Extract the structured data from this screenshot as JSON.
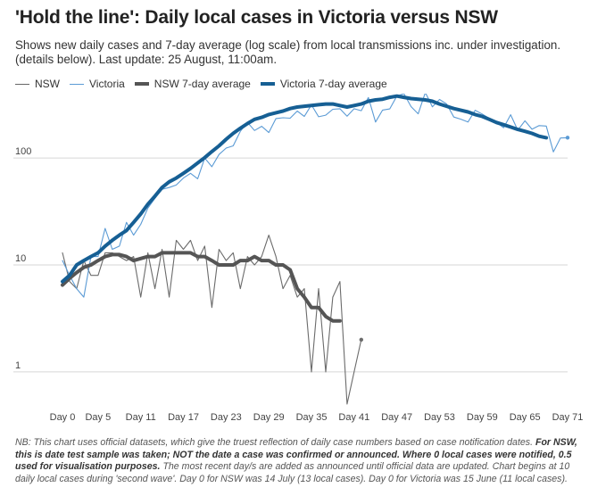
{
  "header": {
    "title": "'Hold the line': Daily local cases in Victoria versus NSW",
    "subtitle": "Shows new daily cases and 7-day average (log scale) from local transmissions inc. under investigation. (details below). Last update: 25 August, 11:00am."
  },
  "legend": [
    {
      "label": "NSW",
      "color": "#666666",
      "weight": "thin"
    },
    {
      "label": "Victoria",
      "color": "#5b9bd5",
      "weight": "thin"
    },
    {
      "label": "NSW 7-day average",
      "color": "#555555",
      "weight": "thick"
    },
    {
      "label": "Victoria 7-day average",
      "color": "#165f94",
      "weight": "thick"
    }
  ],
  "note": {
    "p1": "NB: This chart uses official datasets, which give the truest reflection of daily case numbers based on case notification dates.",
    "p2_bold": "For NSW, this is date test sample was taken; NOT the date a case was confirmed or announced. Where 0 local cases were notified, 0.5 used for visualisation purposes.",
    "p3": "The most recent day/s are added as announced until official data are updated. Chart begins at 10 daily local cases during 'second wave'. Day 0 for NSW was 14 July (13 local cases). Day 0 for Victoria was 15 June (11 local cases)."
  },
  "chart_data": {
    "type": "line",
    "yscale": "log",
    "ylim": [
      0.5,
      400
    ],
    "xlim": [
      0,
      71
    ],
    "y_ticks": [
      1,
      10,
      100
    ],
    "x_ticks": [
      "Day 0",
      "Day 5",
      "Day 11",
      "Day 17",
      "Day 23",
      "Day 29",
      "Day 35",
      "Day 41",
      "Day 47",
      "Day 53",
      "Day 59",
      "Day 65",
      "Day 71"
    ],
    "grid": "horizontal",
    "legend_position": "top-left",
    "series": [
      {
        "name": "NSW",
        "color": "#6b6b6b",
        "width": 1.1,
        "x": [
          0,
          1,
          2,
          3,
          4,
          5,
          6,
          7,
          8,
          9,
          10,
          11,
          12,
          13,
          14,
          15,
          16,
          17,
          18,
          19,
          20,
          21,
          22,
          23,
          24,
          25,
          26,
          27,
          28,
          29,
          30,
          31,
          32,
          33,
          34,
          35,
          36,
          37,
          38,
          39,
          40,
          41,
          42
        ],
        "values": [
          13,
          7,
          6,
          11,
          8,
          8,
          13,
          13,
          12,
          11,
          12,
          5,
          13,
          6,
          14,
          5,
          17,
          14,
          17,
          11,
          15,
          4,
          14,
          11,
          13,
          6,
          12,
          10,
          12,
          19,
          12,
          6,
          8,
          5,
          6,
          1,
          6,
          1,
          5,
          7,
          0.5,
          1,
          2
        ]
      },
      {
        "name": "Victoria",
        "color": "#5b9bd5",
        "width": 1.1,
        "x": [
          0,
          1,
          2,
          3,
          4,
          5,
          6,
          7,
          8,
          9,
          10,
          11,
          12,
          13,
          14,
          15,
          16,
          17,
          18,
          19,
          20,
          21,
          22,
          23,
          24,
          25,
          26,
          27,
          28,
          29,
          30,
          31,
          32,
          33,
          34,
          35,
          36,
          37,
          38,
          39,
          40,
          41,
          42,
          43,
          44,
          45,
          46,
          47,
          48,
          49,
          50,
          51,
          52,
          53,
          54,
          55,
          56,
          57,
          58,
          59,
          60,
          61,
          62,
          63,
          64,
          65,
          66,
          67,
          68,
          69,
          70,
          71
        ],
        "values": [
          11,
          8,
          6,
          5,
          12,
          12,
          22,
          14,
          15,
          25,
          19,
          24,
          34,
          42,
          51,
          53,
          56,
          65,
          72,
          64,
          100,
          83,
          108,
          124,
          130,
          178,
          216,
          181,
          198,
          173,
          234,
          238,
          236,
          275,
          245,
          314,
          243,
          252,
          286,
          289,
          246,
          289,
          277,
          368,
          217,
          281,
          288,
          380,
          400,
          303,
          259,
          410,
          301,
          353,
          320,
          242,
          231,
          217,
          280,
          258,
          235,
          216,
          192,
          254,
          182,
          223,
          186,
          201,
          199,
          114,
          154,
          155
        ]
      },
      {
        "name": "NSW 7-day average",
        "color": "#555555",
        "width": 4,
        "x": [
          0,
          1,
          2,
          3,
          4,
          5,
          6,
          7,
          8,
          9,
          10,
          11,
          12,
          13,
          14,
          15,
          16,
          17,
          18,
          19,
          20,
          21,
          22,
          23,
          24,
          25,
          26,
          27,
          28,
          29,
          30,
          31,
          32,
          33,
          34,
          35,
          36,
          37,
          38,
          39
        ],
        "values": [
          6.5,
          7.5,
          8.5,
          9.5,
          10,
          11,
          12,
          12.5,
          12.5,
          12,
          11,
          11.5,
          12,
          12,
          13,
          13,
          13,
          13,
          13,
          12,
          12,
          11,
          10,
          10,
          10,
          11,
          11,
          12,
          11,
          11,
          10,
          10,
          9,
          6,
          5,
          4,
          4,
          3.3,
          3,
          3
        ]
      },
      {
        "name": "Victoria 7-day average",
        "color": "#165f94",
        "width": 4,
        "x": [
          0,
          1,
          2,
          3,
          4,
          5,
          6,
          7,
          8,
          9,
          10,
          11,
          12,
          13,
          14,
          15,
          16,
          17,
          18,
          19,
          20,
          21,
          22,
          23,
          24,
          25,
          26,
          27,
          28,
          29,
          30,
          31,
          32,
          33,
          34,
          35,
          36,
          37,
          38,
          39,
          40,
          41,
          42,
          43,
          44,
          45,
          46,
          47,
          48,
          49,
          50,
          51,
          52,
          53,
          54,
          55,
          56,
          57,
          58,
          59,
          60,
          61,
          62,
          63,
          64,
          65,
          66,
          67,
          68
        ],
        "values": [
          7,
          8,
          10,
          11,
          12,
          13,
          15,
          17,
          19,
          21,
          25,
          30,
          37,
          44,
          53,
          60,
          65,
          72,
          80,
          90,
          101,
          115,
          130,
          150,
          170,
          190,
          210,
          230,
          240,
          255,
          265,
          275,
          290,
          300,
          305,
          310,
          315,
          320,
          320,
          310,
          300,
          310,
          320,
          340,
          350,
          355,
          370,
          380,
          370,
          360,
          355,
          350,
          340,
          320,
          305,
          290,
          280,
          270,
          255,
          245,
          230,
          215,
          205,
          195,
          185,
          178,
          170,
          160,
          155
        ]
      }
    ]
  }
}
